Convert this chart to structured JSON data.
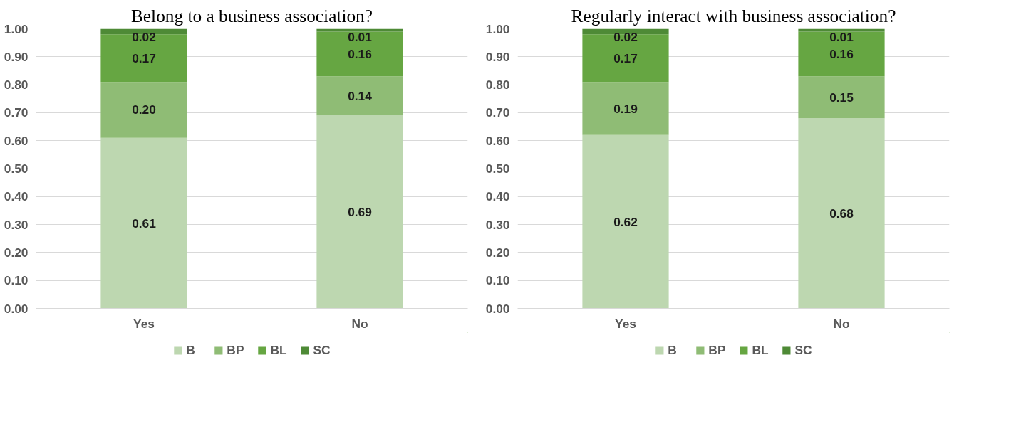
{
  "chart_data": [
    {
      "type": "bar",
      "stacked": true,
      "title": "Belong to a business association?",
      "categories": [
        "Yes",
        "No"
      ],
      "series": [
        {
          "name": "B",
          "color": "#bdd7b0",
          "values": [
            0.61,
            0.69
          ],
          "value_labels": [
            "0.61",
            "0.69"
          ]
        },
        {
          "name": "BP",
          "color": "#8fbc75",
          "values": [
            0.2,
            0.14
          ],
          "value_labels": [
            "0.20",
            "0.14"
          ]
        },
        {
          "name": "BL",
          "color": "#66a642",
          "values": [
            0.17,
            0.16
          ],
          "value_labels": [
            "0.17",
            "0.16"
          ]
        },
        {
          "name": "SC",
          "color": "#4e8a36",
          "values": [
            0.02,
            0.01
          ],
          "value_labels": [
            "0.02",
            "0.01"
          ]
        }
      ],
      "ylim": [
        0,
        1
      ],
      "yticks": [
        {
          "value": 0,
          "label": "0.00"
        },
        {
          "value": 0.1,
          "label": "0.10"
        },
        {
          "value": 0.2,
          "label": "0.20"
        },
        {
          "value": 0.3,
          "label": "0.30"
        },
        {
          "value": 0.4,
          "label": "0.40"
        },
        {
          "value": 0.5,
          "label": "0.50"
        },
        {
          "value": 0.6,
          "label": "0.60"
        },
        {
          "value": 0.7,
          "label": "0.70"
        },
        {
          "value": 0.8,
          "label": "0.80"
        },
        {
          "value": 0.9,
          "label": "0.90"
        },
        {
          "value": 1,
          "label": "1.00"
        }
      ],
      "grid": "y",
      "legend": "bottom"
    },
    {
      "type": "bar",
      "stacked": true,
      "title": "Regularly interact with business association?",
      "categories": [
        "Yes",
        "No"
      ],
      "series": [
        {
          "name": "B",
          "color": "#bdd7b0",
          "values": [
            0.62,
            0.68
          ],
          "value_labels": [
            "0.62",
            "0.68"
          ]
        },
        {
          "name": "BP",
          "color": "#8fbc75",
          "values": [
            0.19,
            0.15
          ],
          "value_labels": [
            "0.19",
            "0.15"
          ]
        },
        {
          "name": "BL",
          "color": "#66a642",
          "values": [
            0.17,
            0.16
          ],
          "value_labels": [
            "0.17",
            "0.16"
          ]
        },
        {
          "name": "SC",
          "color": "#4e8a36",
          "values": [
            0.02,
            0.01
          ],
          "value_labels": [
            "0.02",
            "0.01"
          ]
        }
      ],
      "ylim": [
        0,
        1
      ],
      "yticks": [
        {
          "value": 0,
          "label": "0.00"
        },
        {
          "value": 0.1,
          "label": "0.10"
        },
        {
          "value": 0.2,
          "label": "0.20"
        },
        {
          "value": 0.3,
          "label": "0.30"
        },
        {
          "value": 0.4,
          "label": "0.40"
        },
        {
          "value": 0.5,
          "label": "0.50"
        },
        {
          "value": 0.6,
          "label": "0.60"
        },
        {
          "value": 0.7,
          "label": "0.70"
        },
        {
          "value": 0.8,
          "label": "0.80"
        },
        {
          "value": 0.9,
          "label": "0.90"
        },
        {
          "value": 1,
          "label": "1.00"
        }
      ],
      "grid": "y",
      "legend": "bottom"
    }
  ]
}
